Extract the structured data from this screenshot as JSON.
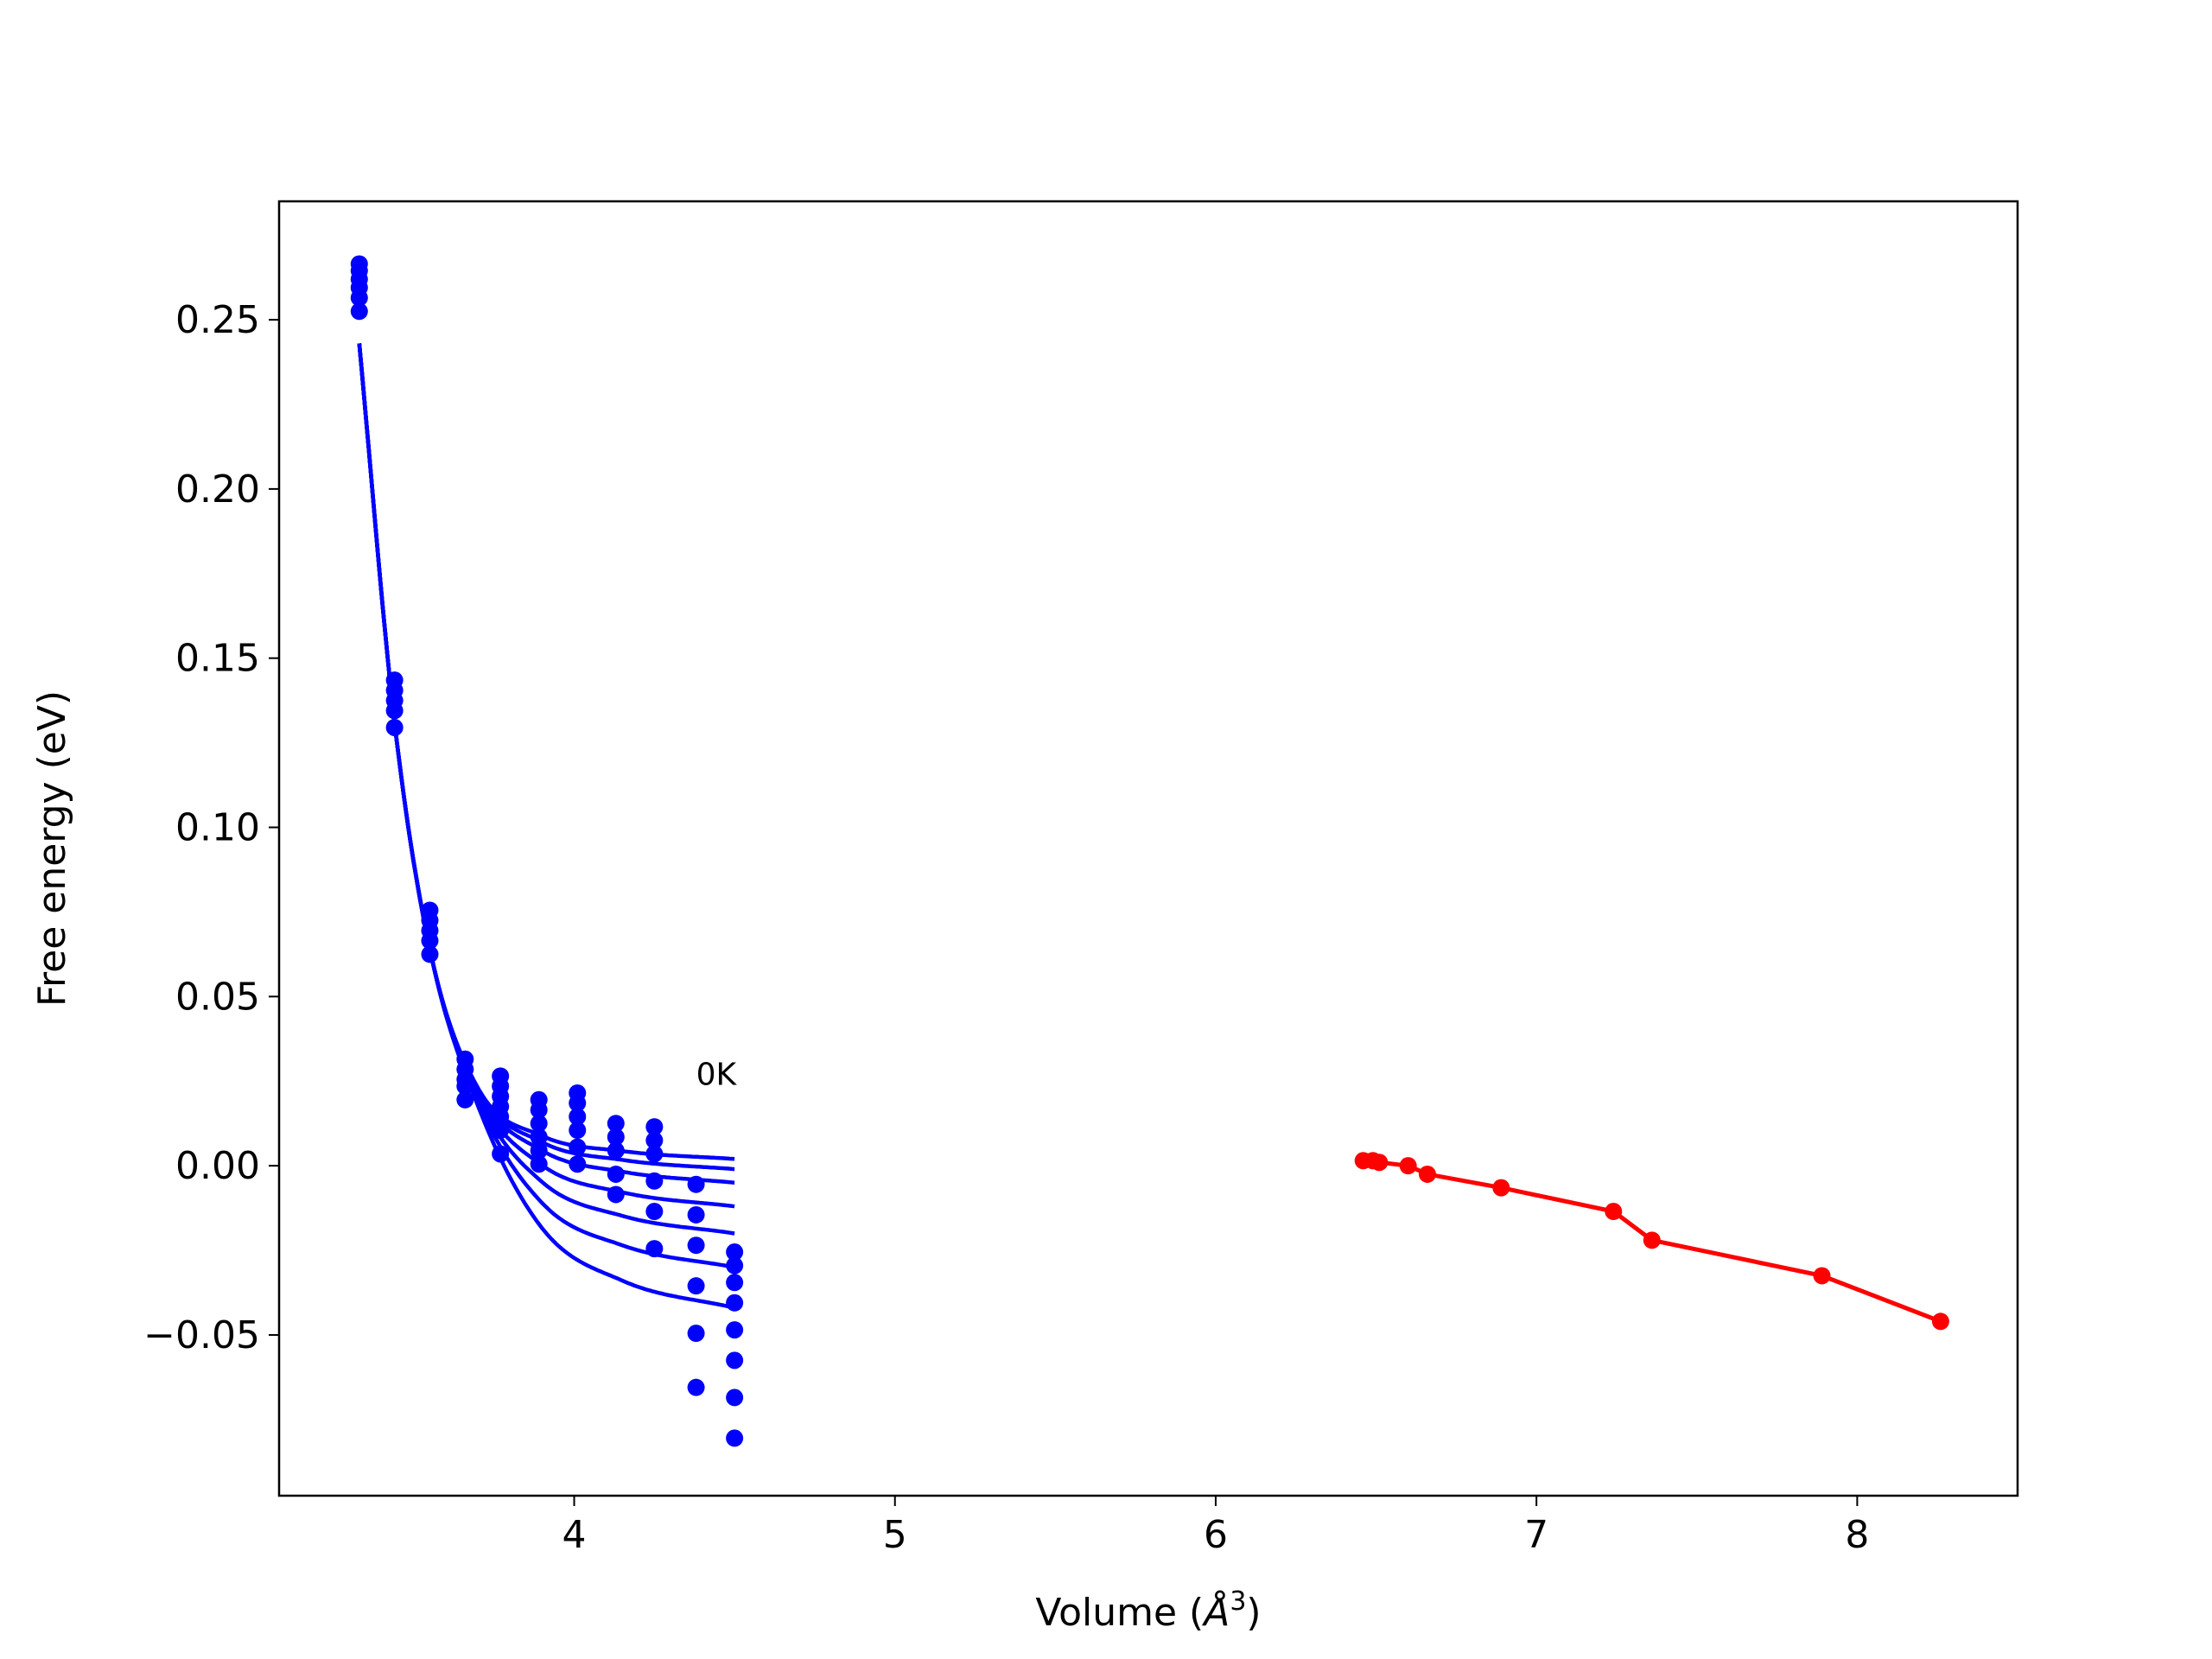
{
  "chart_data": {
    "type": "scatter",
    "title": "",
    "xlabel_prefix": "Volume (",
    "xlabel_unit": "Å",
    "xlabel_exp": "3",
    "xlabel_suffix": ")",
    "ylabel": "Free energy (eV)",
    "xlim": [
      3.08,
      8.5
    ],
    "ylim": [
      -0.0975,
      0.285
    ],
    "xticks": [
      4,
      5,
      6,
      7,
      8
    ],
    "xtick_labels": [
      "4",
      "5",
      "6",
      "7",
      "8"
    ],
    "yticks": [
      -0.05,
      0.0,
      0.05,
      0.1,
      0.15,
      0.2,
      0.25
    ],
    "ytick_labels": [
      "−0.05",
      "0.00",
      "0.05",
      "0.10",
      "0.15",
      "0.20",
      "0.25"
    ],
    "grid": false,
    "legend": "none",
    "annotation": {
      "text": "0K",
      "x": 4.38,
      "y": 0.027
    },
    "colors": {
      "blue": "#0000ff",
      "red": "#ff0000",
      "axes": "#000000"
    },
    "blue_curves": {
      "x_range": [
        3.33,
        4.5
      ],
      "anchor_points": [
        [
          3.33,
          0.243
        ],
        [
          3.44,
          0.131
        ],
        [
          3.55,
          0.064
        ]
      ],
      "end_values": [
        0.002,
        -0.001,
        -0.005,
        -0.012,
        -0.02,
        -0.03,
        -0.042
      ]
    },
    "blue_points": {
      "x": [
        3.33,
        3.44,
        3.55,
        3.66,
        3.77,
        3.89,
        4.01,
        4.13,
        4.25,
        4.38,
        4.5
      ],
      "y": [
        [
          0.2665,
          0.2645,
          0.262,
          0.2595,
          0.2565,
          0.2525
        ],
        [
          0.1435,
          0.1405,
          0.1375,
          0.1345,
          0.1295
        ],
        [
          0.0755,
          0.0725,
          0.0695,
          0.0665,
          0.0625
        ],
        [
          0.0315,
          0.0285,
          0.0255,
          0.0235,
          0.0195
        ],
        [
          0.0265,
          0.0235,
          0.0205,
          0.0175,
          0.0145,
          0.0105,
          0.0035
        ],
        [
          0.0195,
          0.0165,
          0.0125,
          0.0085,
          0.0045,
          0.0005
        ],
        [
          0.0215,
          0.0185,
          0.0145,
          0.0105,
          0.0055,
          0.0005
        ],
        [
          0.0125,
          0.0085,
          0.0045,
          -0.0025,
          -0.0085
        ],
        [
          0.0115,
          0.0075,
          0.0035,
          -0.0045,
          -0.0135,
          -0.0245
        ],
        [
          -0.0055,
          -0.0145,
          -0.0235,
          -0.0355,
          -0.0495,
          -0.0655
        ],
        [
          -0.0255,
          -0.0295,
          -0.0345,
          -0.0405,
          -0.0485,
          -0.0575,
          -0.0685,
          -0.0805
        ]
      ]
    },
    "series": [
      {
        "color": "red",
        "style": "line-markers",
        "x": [
          6.46,
          6.49,
          6.51,
          6.6,
          6.66,
          6.89,
          7.24,
          7.36,
          7.89,
          8.26
        ],
        "y": [
          0.0015,
          0.0015,
          0.001,
          0.0,
          -0.0025,
          -0.0065,
          -0.0135,
          -0.022,
          -0.0325,
          -0.046
        ]
      }
    ]
  }
}
